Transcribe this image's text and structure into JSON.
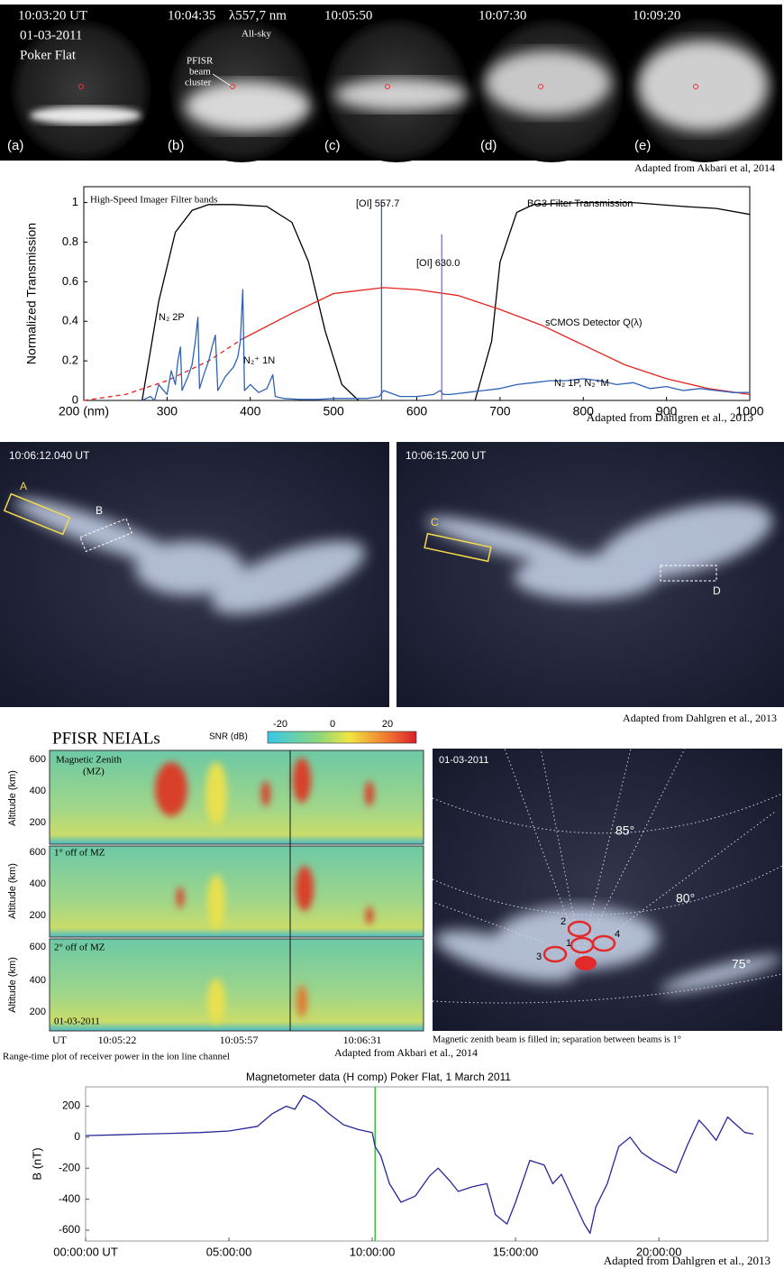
{
  "allsky": {
    "frames": [
      {
        "time": "10:03:20 UT",
        "label": "(a)"
      },
      {
        "time": "10:04:35",
        "label": "(b)"
      },
      {
        "time": "10:05:50",
        "label": "(c)"
      },
      {
        "time": "10:07:30",
        "label": "(d)"
      },
      {
        "time": "10:09:20",
        "label": "(e)"
      }
    ],
    "date": "01-03-2011",
    "site": "Poker Flat",
    "wavelength": "λ557,7 nm",
    "view": "All-sky",
    "beam_note": [
      "PFISR",
      "beam",
      "cluster"
    ],
    "source": "Adapted from Akbari et al, 2014"
  },
  "imager": {
    "left_time": "10:06:12.040 UT",
    "right_time": "10:06:15.200 UT",
    "boxes": [
      "A",
      "B",
      "C",
      "D"
    ],
    "source": "Adapted from Dahlgren et al., 2013"
  },
  "radar": {
    "title": "PFISR  NEIALs",
    "colorbar_label": "SNR (dB)",
    "colorbar_ticks": [
      -20,
      0,
      20
    ],
    "panels": [
      [
        "Magnetic Zenith",
        "(MZ)"
      ],
      [
        "1° off of MZ"
      ],
      [
        "2° off of MZ"
      ]
    ],
    "date": "01-03-2011",
    "y_label": "Altitude (km)",
    "altitude_ticks": [
      600,
      400,
      200
    ],
    "x_labels": [
      "UT",
      "10:05:22",
      "10:05:57",
      "10:06:31"
    ],
    "caption": "Range-time plot of receiver power in the ion line channel",
    "source": "Adapted from Akbari et al., 2014"
  },
  "zenith": {
    "date": "01-03-2011",
    "angles": [
      "85°",
      "80°",
      "75°"
    ],
    "beams": [
      "1",
      "2",
      "3",
      "4"
    ],
    "caption": "Magnetic zenith beam is filled in; separation between beams is 1°"
  },
  "chart_data": [
    {
      "type": "line",
      "y_label": "Normalized Transmission",
      "xlim": [
        200,
        1000
      ],
      "xticks": [
        {
          "value": 200,
          "label": "200 (nm)"
        },
        300,
        400,
        500,
        600,
        700,
        800,
        900,
        1000
      ],
      "ylim": [
        0,
        1.08
      ],
      "yticks": [
        0,
        0.2,
        0.4,
        0.6,
        0.8,
        1
      ],
      "grid": false,
      "annotations": [
        "N₂ 2P",
        "N₂⁺ 1N",
        "N₂ 1P, N₂⁺M"
      ],
      "source": "Adapted from Dahlgren et al., 2013",
      "series": [
        {
          "name": "High-Speed Imager Filter bands",
          "color": "#000000",
          "x": [
            270,
            290,
            310,
            330,
            350,
            380,
            420,
            450,
            470,
            490,
            510,
            530
          ],
          "values": [
            0,
            0.5,
            0.85,
            0.96,
            0.99,
            0.99,
            0.98,
            0.9,
            0.7,
            0.35,
            0.08,
            0
          ]
        },
        {
          "name": "BG3 Filter Transmission",
          "color": "#000000",
          "x": [
            670,
            690,
            700,
            720,
            740,
            800,
            860,
            920,
            960,
            1000
          ],
          "values": [
            0,
            0.3,
            0.7,
            0.95,
            0.99,
            1.0,
            1.0,
            0.98,
            0.97,
            0.94
          ]
        },
        {
          "name": "sCMOS Detector Q(λ)",
          "color": "#e8231f",
          "x": [
            390,
            450,
            500,
            560,
            600,
            650,
            700,
            750,
            800,
            850,
            900,
            950,
            1000
          ],
          "values": [
            0.31,
            0.44,
            0.54,
            0.57,
            0.56,
            0.53,
            0.46,
            0.38,
            0.28,
            0.18,
            0.11,
            0.06,
            0.03
          ]
        },
        {
          "color": "#e8231f",
          "style": "dashed",
          "x": [
            200,
            250,
            300,
            350,
            390
          ],
          "values": [
            0,
            0.03,
            0.1,
            0.2,
            0.31
          ]
        },
        {
          "color": "#2f62b8",
          "x": [
            270,
            280,
            285,
            290,
            300,
            305,
            310,
            313,
            316,
            318,
            325,
            330,
            334,
            337,
            339,
            345,
            350,
            354,
            358,
            361,
            370,
            380,
            385,
            388,
            391,
            393,
            400,
            410,
            420,
            424,
            427,
            430,
            440,
            460,
            480,
            500,
            520,
            540,
            555,
            560,
            580,
            600,
            620,
            628,
            632,
            640,
            660,
            680,
            700,
            720,
            740,
            760,
            780,
            800,
            820,
            840,
            860,
            880,
            900,
            920,
            940,
            960,
            980,
            1000
          ],
          "values": [
            0,
            0.02,
            0,
            0.08,
            0.03,
            0.15,
            0.08,
            0.2,
            0.27,
            0.05,
            0.12,
            0.18,
            0.3,
            0.42,
            0.06,
            0.14,
            0.2,
            0.27,
            0.33,
            0.05,
            0.12,
            0.17,
            0.22,
            0.3,
            0.56,
            0.05,
            0.08,
            0.04,
            0.06,
            0.1,
            0.13,
            0.02,
            0.01,
            0.005,
            0.005,
            0.01,
            0.01,
            0.01,
            0.02,
            0.05,
            0.02,
            0.02,
            0.03,
            0.05,
            0.03,
            0.03,
            0.04,
            0.05,
            0.06,
            0.08,
            0.09,
            0.1,
            0.1,
            0.11,
            0.1,
            0.08,
            0.09,
            0.06,
            0.07,
            0.05,
            0.06,
            0.05,
            0.04,
            0.04
          ]
        },
        {
          "name": "[OI] 557.7",
          "color": "#2f62b8",
          "x": [
            557.7,
            557.7
          ],
          "values": [
            0,
            1.0
          ]
        },
        {
          "name": "[OI] 630.0",
          "color": "#8a6cc9",
          "x": [
            630,
            630
          ],
          "values": [
            0,
            0.84
          ]
        }
      ]
    },
    {
      "type": "line",
      "title": "Magnetometer data (H comp) Poker Flat, 1 March 2011",
      "y_label": "B (nT)",
      "xlim": [
        0,
        23.8
      ],
      "xticks": [
        {
          "value": 0,
          "label": "00:00:00 UT"
        },
        {
          "value": 5,
          "label": "05:00:00"
        },
        {
          "value": 10,
          "label": "10:00:00"
        },
        {
          "value": 15,
          "label": "15:00:00"
        },
        {
          "value": 20,
          "label": "20:00:00"
        }
      ],
      "ylim": [
        -670,
        325
      ],
      "yticks": [
        200,
        0,
        -200,
        -400,
        -600
      ],
      "grid": false,
      "vline": {
        "x": 10.1,
        "color": "#3cc23c"
      },
      "source": "Adapted from Dahlgren et al., 2013",
      "series": [
        {
          "color": "#27279a",
          "x": [
            0,
            1,
            2,
            3,
            4,
            5,
            6,
            6.5,
            7,
            7.3,
            7.6,
            8,
            8.5,
            9,
            9.5,
            10,
            10.1,
            10.3,
            10.6,
            11,
            11.5,
            12,
            12.3,
            12.7,
            13,
            13.5,
            14,
            14.3,
            14.7,
            15,
            15.5,
            16,
            16.3,
            16.6,
            17,
            17.4,
            17.6,
            17.8,
            18.2,
            18.6,
            19,
            19.4,
            19.8,
            20.3,
            20.6,
            21,
            21.4,
            21.7,
            22,
            22.4,
            22.7,
            23,
            23.3
          ],
          "values": [
            10,
            15,
            20,
            25,
            30,
            40,
            70,
            150,
            200,
            180,
            270,
            230,
            150,
            80,
            50,
            30,
            -60,
            -120,
            -300,
            -420,
            -380,
            -250,
            -200,
            -280,
            -350,
            -320,
            -300,
            -500,
            -560,
            -420,
            -150,
            -180,
            -300,
            -240,
            -400,
            -560,
            -620,
            -450,
            -300,
            -60,
            0,
            -100,
            -150,
            -200,
            -230,
            -50,
            110,
            50,
            -20,
            130,
            80,
            30,
            20
          ]
        }
      ]
    }
  ]
}
